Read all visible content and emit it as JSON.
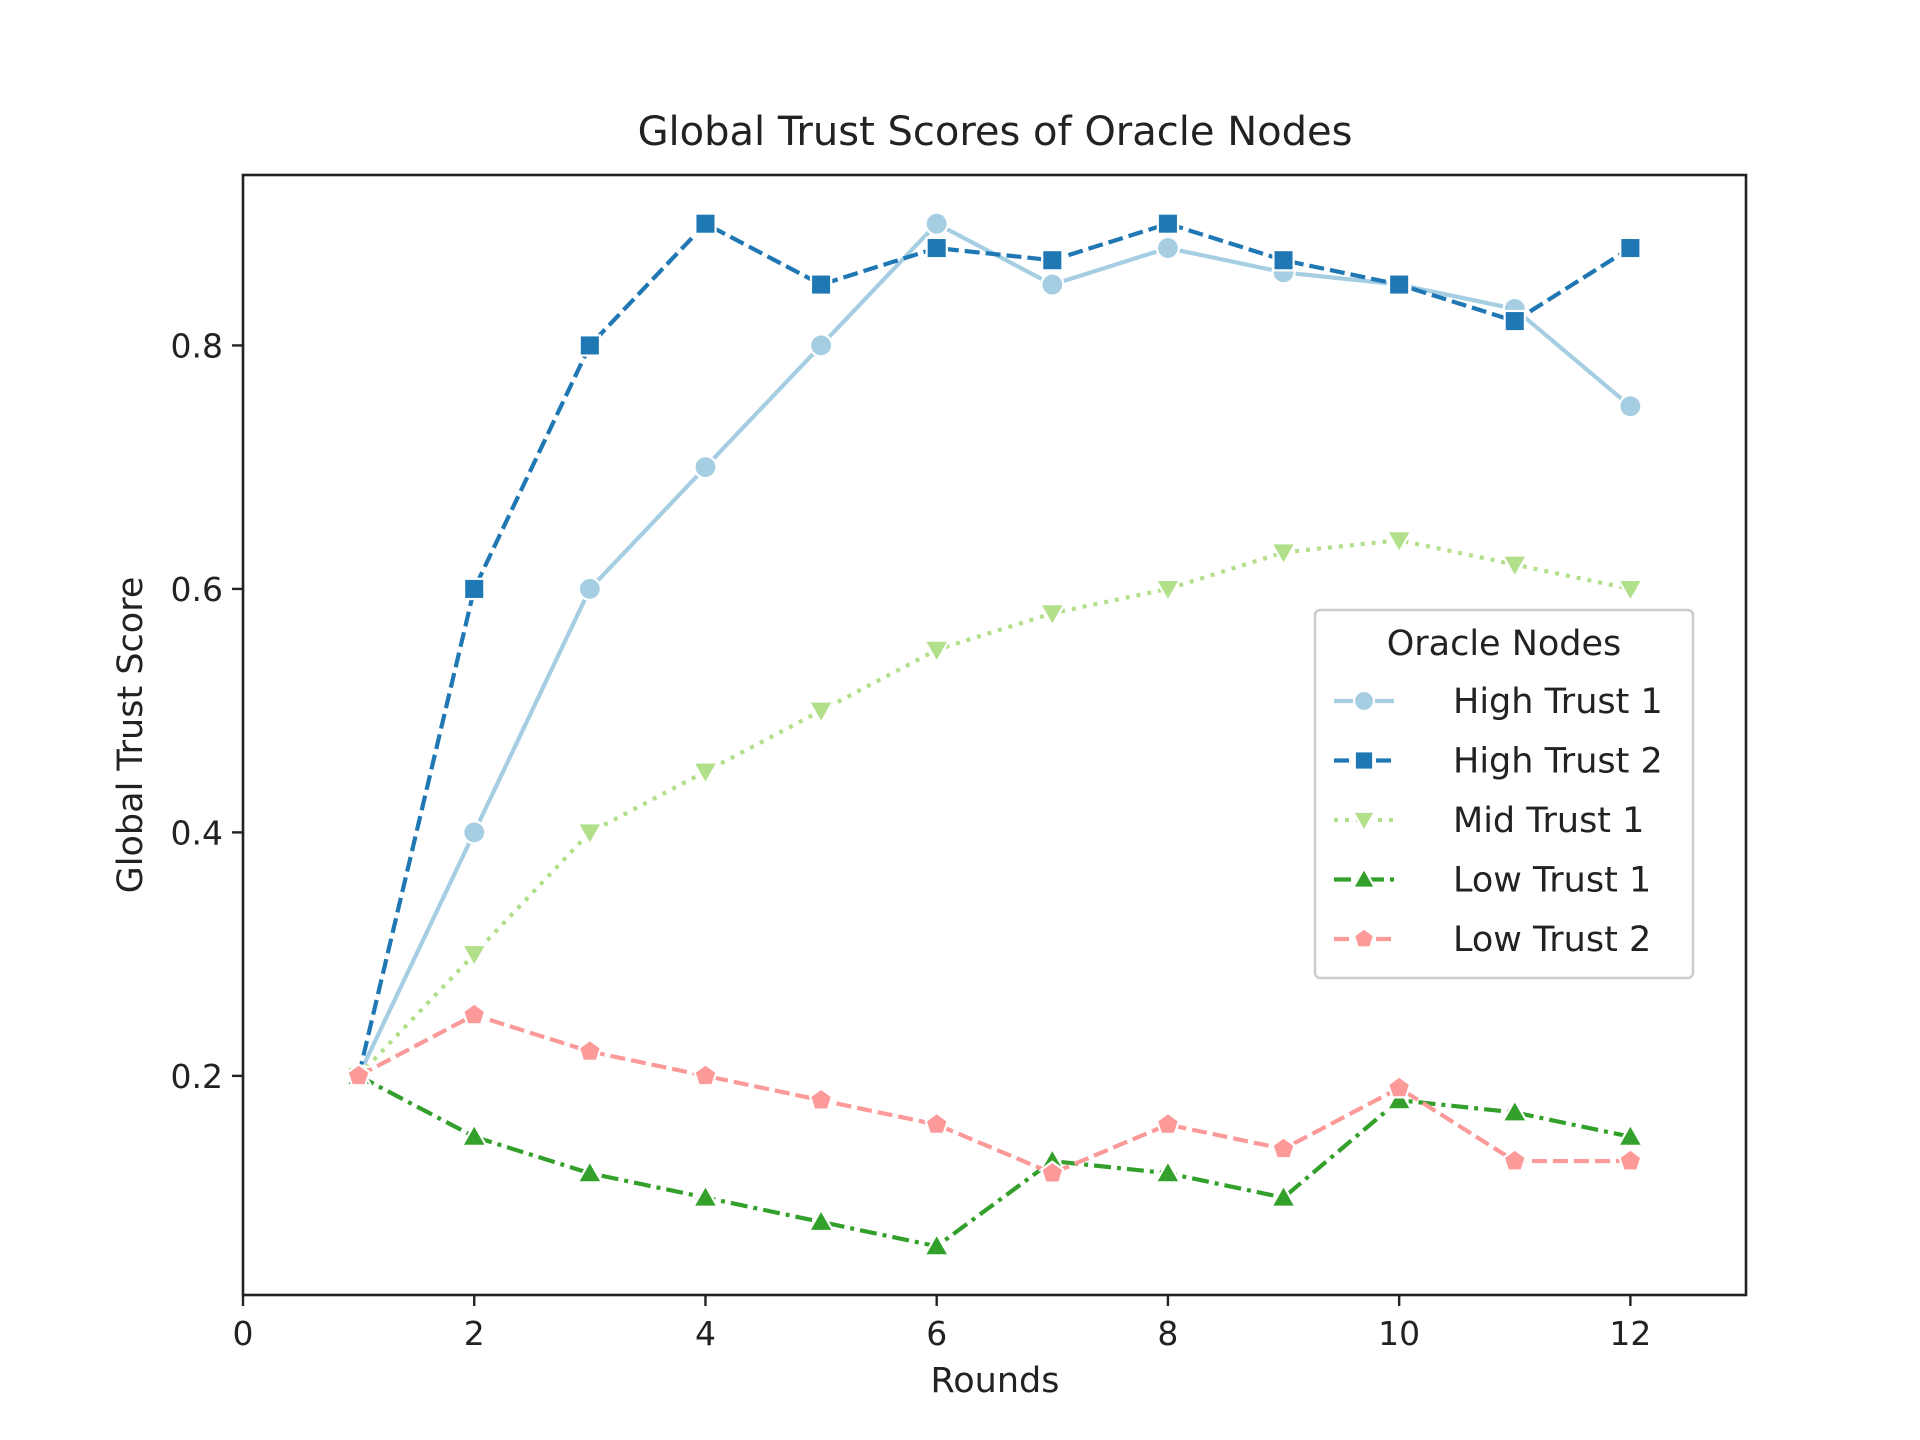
{
  "chart_data": {
    "type": "line",
    "title": "Global Trust Scores of Oracle Nodes",
    "xlabel": "Rounds",
    "ylabel": "Global Trust Score",
    "xlim": [
      0,
      13
    ],
    "ylim": [
      0.02,
      0.94
    ],
    "xticks": [
      0,
      2,
      4,
      6,
      8,
      10,
      12
    ],
    "xtick_labels": [
      "0",
      "2",
      "4",
      "6",
      "8",
      "10",
      "12"
    ],
    "yticks": [
      0.2,
      0.4,
      0.6,
      0.8
    ],
    "ytick_labels": [
      "0.2",
      "0.4",
      "0.6",
      "0.8"
    ],
    "grid": false,
    "legend": {
      "title": "Oracle Nodes",
      "placement": "center-right"
    },
    "x": [
      1,
      2,
      3,
      4,
      5,
      6,
      7,
      8,
      9,
      10,
      11,
      12
    ],
    "series": [
      {
        "name": "High Trust 1",
        "color": "#a6cee3",
        "marker": "circle",
        "dash": "solid",
        "values": [
          0.2,
          0.4,
          0.6,
          0.7,
          0.8,
          0.9,
          0.85,
          0.88,
          0.86,
          0.85,
          0.83,
          0.75
        ]
      },
      {
        "name": "High Trust 2",
        "color": "#1f78b4",
        "marker": "square",
        "dash": "dashed",
        "values": [
          0.2,
          0.6,
          0.8,
          0.9,
          0.85,
          0.88,
          0.87,
          0.9,
          0.87,
          0.85,
          0.82,
          0.88
        ]
      },
      {
        "name": "Mid Trust 1",
        "color": "#b2df8a",
        "marker": "triangle-down",
        "dash": "dotted",
        "values": [
          0.2,
          0.3,
          0.4,
          0.45,
          0.5,
          0.55,
          0.58,
          0.6,
          0.63,
          0.64,
          0.62,
          0.6
        ]
      },
      {
        "name": "Low Trust 1",
        "color": "#33a02c",
        "marker": "triangle-up",
        "dash": "dashdot",
        "values": [
          0.2,
          0.15,
          0.12,
          0.1,
          0.08,
          0.06,
          0.13,
          0.12,
          0.1,
          0.18,
          0.17,
          0.15
        ]
      },
      {
        "name": "Low Trust 2",
        "color": "#fb9a99",
        "marker": "pentagon",
        "dash": "dashed",
        "values": [
          0.2,
          0.25,
          0.22,
          0.2,
          0.18,
          0.16,
          0.12,
          0.16,
          0.14,
          0.19,
          0.13,
          0.13
        ]
      }
    ]
  }
}
